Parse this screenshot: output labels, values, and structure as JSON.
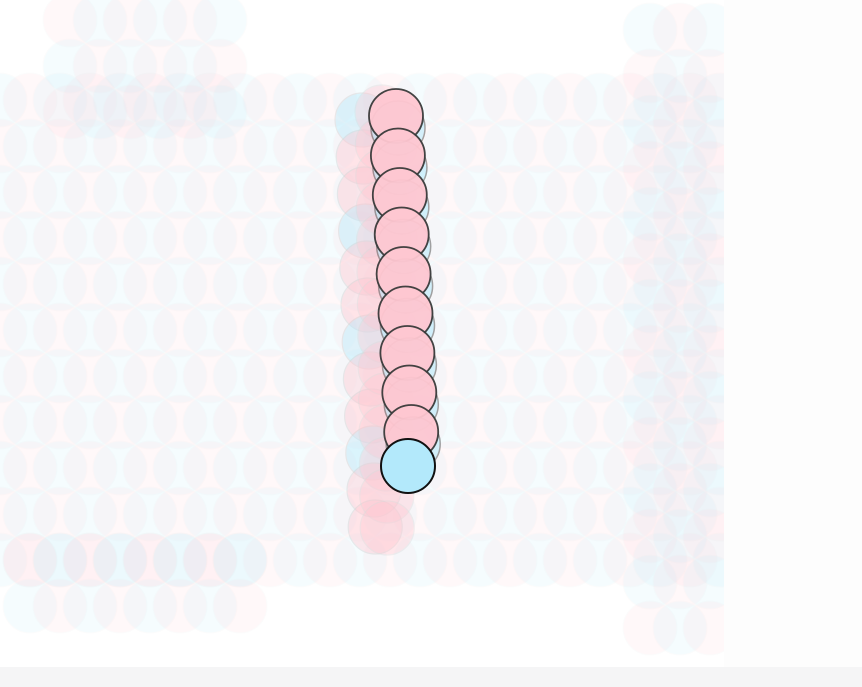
{
  "game": {
    "colors": {
      "background": "#ffffff",
      "snake_body": "#ffc7d1",
      "snake_head": "#b3e9fb",
      "outline": "#111111",
      "trail_pink": "#ffc7d1",
      "trail_blue": "#b3e9fb"
    },
    "snake": {
      "segment_count": 9,
      "has_head": true
    }
  }
}
